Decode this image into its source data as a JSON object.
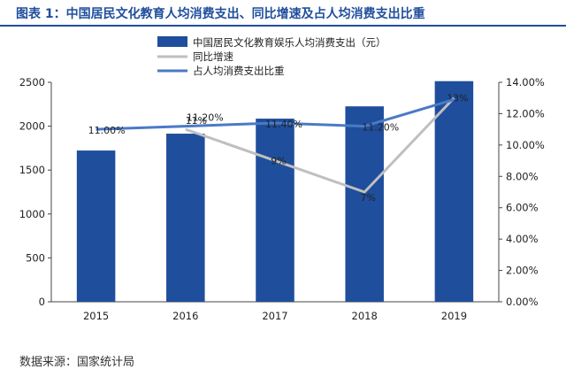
{
  "title": "图表 1：中国居民文化教育人均消费支出、同比增速及占人均消费支出比重",
  "source": "数据来源：国家统计局",
  "chart_data": {
    "type": "bar",
    "categories": [
      "2015",
      "2016",
      "2017",
      "2018",
      "2019"
    ],
    "ylim_left": [
      0,
      2500
    ],
    "yticks_left": [
      "0",
      "500",
      "1000",
      "1500",
      "2000",
      "2500"
    ],
    "ylim_right": [
      0,
      14
    ],
    "yticks_right": [
      "0.00%",
      "2.00%",
      "4.00%",
      "6.00%",
      "8.00%",
      "10.00%",
      "12.00%",
      "14.00%"
    ],
    "series": [
      {
        "name": "中国居民文化教育娱乐人均消费支出（元）",
        "type": "bar",
        "axis": "left",
        "color": "#1f4e9c",
        "values": [
          1723,
          1915,
          2086,
          2226,
          2513
        ]
      },
      {
        "name": "同比增速",
        "type": "line",
        "axis": "right",
        "color": "#bfbfbf",
        "values": [
          null,
          11,
          9,
          7,
          13
        ],
        "labels": [
          null,
          "11%",
          "9%",
          "7%",
          "13%"
        ]
      },
      {
        "name": "占人均消费支出比重",
        "type": "line",
        "axis": "right",
        "color": "#4a7ac6",
        "values": [
          11.0,
          11.2,
          11.4,
          11.2,
          12.9
        ],
        "labels": [
          "11.00%",
          "11.20%",
          "11.40%",
          "11.20%",
          ""
        ]
      }
    ]
  }
}
